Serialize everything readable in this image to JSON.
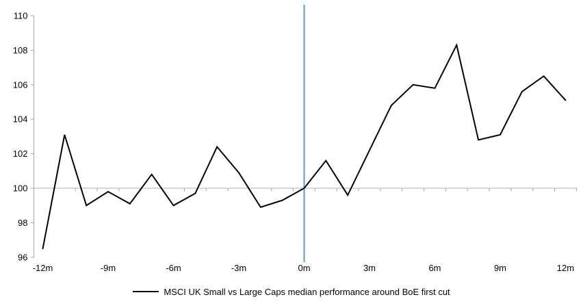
{
  "chart_data": {
    "type": "line",
    "title": "",
    "legend": "MSCI UK Small vs Large Caps median performance around BoE first cut",
    "legend_position": "bottom",
    "x_axis": {
      "unit": "months relative to BoE first cut",
      "labels": [
        {
          "m": -12,
          "label": "-12m"
        },
        {
          "m": -9,
          "label": "-9m"
        },
        {
          "m": -6,
          "label": "-6m"
        },
        {
          "m": -3,
          "label": "-3m"
        },
        {
          "m": 0,
          "label": "0m"
        },
        {
          "m": 3,
          "label": "3m"
        },
        {
          "m": 6,
          "label": "6m"
        },
        {
          "m": 9,
          "label": "9m"
        },
        {
          "m": 12,
          "label": "12m"
        }
      ],
      "xlim": [
        -12.5,
        12.5
      ],
      "tick_every_month": true
    },
    "y_axis": {
      "ticks": [
        96,
        98,
        100,
        102,
        104,
        106,
        108,
        110
      ],
      "ylim": [
        96,
        110
      ]
    },
    "baseline_value": 100,
    "event_line_x": 0,
    "grid": "baseline-only",
    "x": [
      -12,
      -11,
      -10,
      -9,
      -8,
      -7,
      -6,
      -5,
      -4,
      -3,
      -2,
      -1,
      0,
      1,
      2,
      3,
      4,
      5,
      6,
      7,
      8,
      9,
      10,
      11,
      12
    ],
    "series": [
      {
        "name": "MSCI UK Small vs Large Caps median performance around BoE first cut",
        "values": [
          96.5,
          103.1,
          99.0,
          99.8,
          99.1,
          100.8,
          99.0,
          99.7,
          102.4,
          100.9,
          98.9,
          99.3,
          100.0,
          101.6,
          99.6,
          102.2,
          104.8,
          106.0,
          105.8,
          108.3,
          102.8,
          103.1,
          105.6,
          106.5,
          105.1
        ]
      }
    ],
    "colors": {
      "series": "#000000",
      "event_line": "#5B9BD5",
      "baseline": "#C0C0C0",
      "axis": "#A6A6A6",
      "text": "#000000"
    }
  }
}
